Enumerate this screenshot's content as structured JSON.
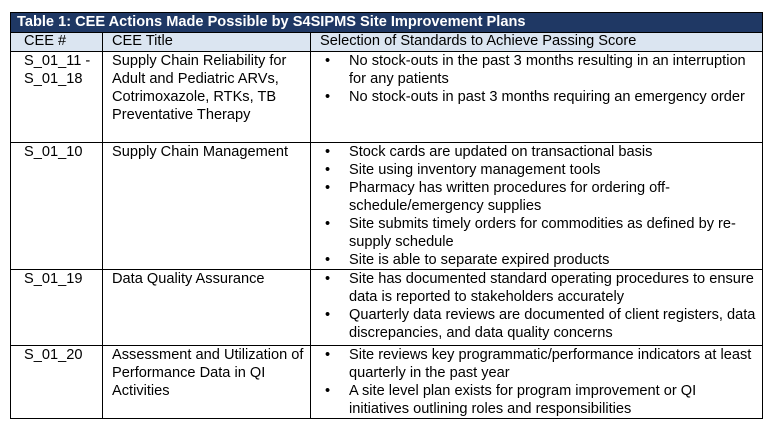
{
  "table": {
    "caption": "Table 1: CEE Actions Made Possible by S4SIPMS Site Improvement Plans",
    "headers": {
      "id": "CEE #",
      "title": "CEE Title",
      "standards": "Selection of Standards to Achieve Passing Score"
    },
    "rows": [
      {
        "id_line1": "S_01_11 -",
        "id_line2": "S_01_18",
        "title": "Supply Chain Reliability for Adult and Pediatric ARVs, Cotrimoxazole, RTKs, TB Preventative Therapy",
        "standards": [
          "No stock-outs in the past 3 months resulting in an interruption for any patients",
          "No stock-outs in past 3 months requiring an emergency order"
        ]
      },
      {
        "id_line1": "S_01_10",
        "title": "Supply Chain Management",
        "standards": [
          "Stock cards are updated on transactional basis",
          "Site using inventory management tools",
          "Pharmacy has written procedures for ordering off-schedule/emergency supplies",
          "Site submits timely orders for commodities as defined by re-supply schedule",
          "Site is able to separate expired products"
        ]
      },
      {
        "id_line1": "S_01_19",
        "title": "Data Quality Assurance",
        "standards": [
          "Site has documented standard operating procedures to ensure data is reported to stakeholders accurately",
          "Quarterly data reviews are documented of client registers, data discrepancies, and data quality concerns"
        ]
      },
      {
        "id_line1": "S_01_20",
        "title": "Assessment and Utilization of Performance Data in QI Activities",
        "standards": [
          "Site reviews key programmatic/performance indicators at least quarterly in the past year",
          "A site level plan exists for program improvement or QI initiatives outlining roles and responsibilities"
        ]
      }
    ]
  },
  "colors": {
    "caption_bg": "#1f3864",
    "header_bg": "#dbe5f1"
  }
}
